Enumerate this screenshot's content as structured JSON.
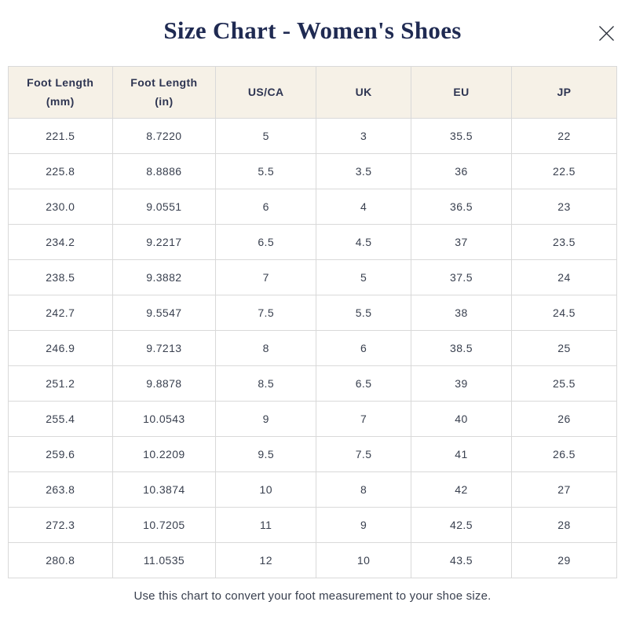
{
  "dialog": {
    "title": "Size Chart - Women's Shoes",
    "footer_note": "Use this chart to convert your foot measurement to your shoe size."
  },
  "table": {
    "headers": [
      "Foot Length\n(mm)",
      "Foot Length\n(in)",
      "US/CA",
      "UK",
      "EU",
      "JP"
    ],
    "rows": [
      [
        "221.5",
        "8.7220",
        "5",
        "3",
        "35.5",
        "22"
      ],
      [
        "225.8",
        "8.8886",
        "5.5",
        "3.5",
        "36",
        "22.5"
      ],
      [
        "230.0",
        "9.0551",
        "6",
        "4",
        "36.5",
        "23"
      ],
      [
        "234.2",
        "9.2217",
        "6.5",
        "4.5",
        "37",
        "23.5"
      ],
      [
        "238.5",
        "9.3882",
        "7",
        "5",
        "37.5",
        "24"
      ],
      [
        "242.7",
        "9.5547",
        "7.5",
        "5.5",
        "38",
        "24.5"
      ],
      [
        "246.9",
        "9.7213",
        "8",
        "6",
        "38.5",
        "25"
      ],
      [
        "251.2",
        "9.8878",
        "8.5",
        "6.5",
        "39",
        "25.5"
      ],
      [
        "255.4",
        "10.0543",
        "9",
        "7",
        "40",
        "26"
      ],
      [
        "259.6",
        "10.2209",
        "9.5",
        "7.5",
        "41",
        "26.5"
      ],
      [
        "263.8",
        "10.3874",
        "10",
        "8",
        "42",
        "27"
      ],
      [
        "272.3",
        "10.7205",
        "11",
        "9",
        "42.5",
        "28"
      ],
      [
        "280.8",
        "11.0535",
        "12",
        "10",
        "43.5",
        "29"
      ]
    ]
  },
  "colors": {
    "title_text": "#1f2a52",
    "header_bg": "#f6f1e7",
    "header_text": "#2e3552",
    "body_text": "#39404f",
    "border": "#d9d9d9",
    "close_icon": "#2a2f3a",
    "background": "#ffffff"
  }
}
